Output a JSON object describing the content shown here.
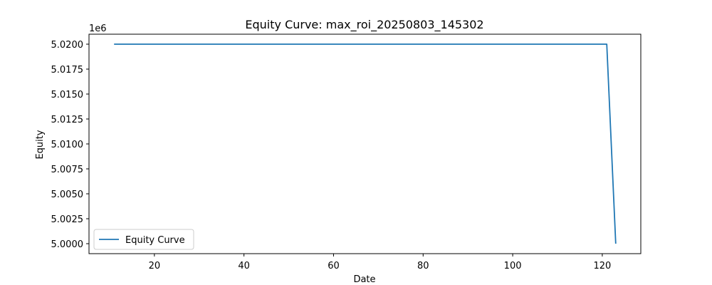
{
  "chart_data": {
    "type": "line",
    "title": "Equity Curve: max_roi_20250803_145302",
    "xlabel": "Date",
    "ylabel": "Equity",
    "y_offset_label": "1e6",
    "xlim": [
      5.4,
      128.6
    ],
    "ylim": [
      4.999,
      5.021
    ],
    "x_ticks": [
      20,
      40,
      60,
      80,
      100,
      120
    ],
    "x_tick_labels": [
      "20",
      "40",
      "60",
      "80",
      "100",
      "120"
    ],
    "y_ticks": [
      5.0,
      5.0025,
      5.005,
      5.0075,
      5.01,
      5.0125,
      5.015,
      5.0175,
      5.02
    ],
    "y_tick_labels": [
      "5.0000",
      "5.0025",
      "5.0050",
      "5.0075",
      "5.0100",
      "5.0125",
      "5.0150",
      "5.0175",
      "5.0200"
    ],
    "grid": false,
    "legend_position": "lower-left",
    "series": [
      {
        "name": "Equity Curve",
        "color": "#1f77b4",
        "x": [
          11,
          121,
          123
        ],
        "y": [
          5.02,
          5.02,
          5.0
        ]
      }
    ]
  }
}
